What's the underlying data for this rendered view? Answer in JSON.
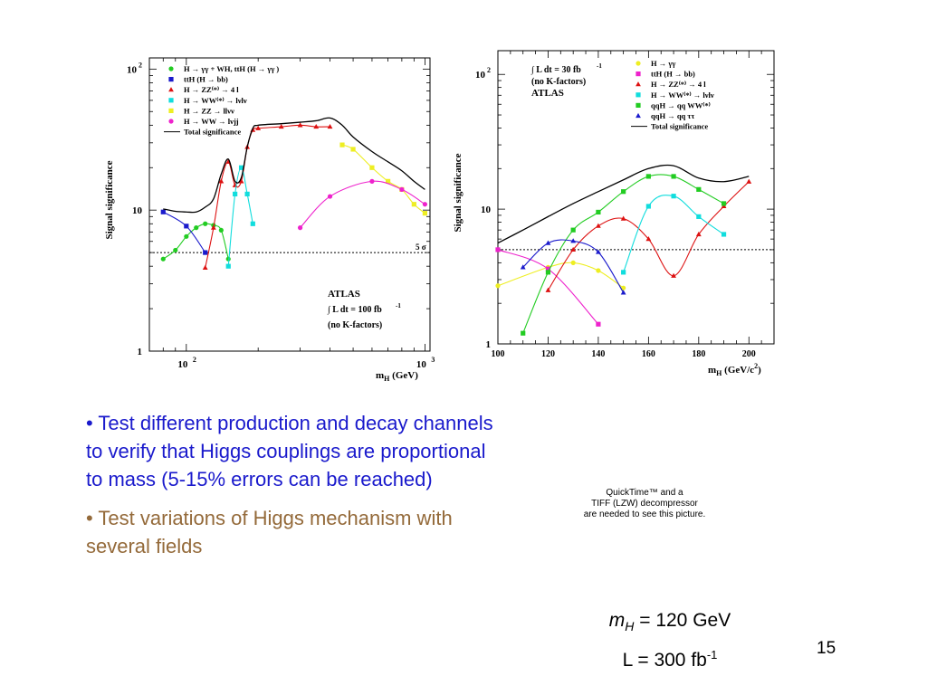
{
  "chart_data": [
    {
      "type": "line",
      "ylabel": "Signal significance",
      "xlabel_main": "m",
      "xlabel_sub": "H",
      "xlabel_unit": " (GeV)",
      "xscale": "log",
      "yscale": "log",
      "xlim": [
        70,
        1050
      ],
      "ylim": [
        1,
        120
      ],
      "xticks": [
        {
          "v": 100,
          "base": "10",
          "exp": "2"
        },
        {
          "v": 1000,
          "base": "10",
          "exp": "3"
        }
      ],
      "yticks": [
        {
          "v": 1,
          "base": "1",
          "exp": ""
        },
        {
          "v": 10,
          "base": "10",
          "exp": ""
        },
        {
          "v": 100,
          "base": "10",
          "exp": "2"
        }
      ],
      "ref_line": {
        "y": 5,
        "label": "5 σ"
      },
      "legend": [
        {
          "text": "H  →  γγ  +   WH, ttH (H  →  γγ )",
          "color": "#22cc22",
          "marker": "circle"
        },
        {
          "text": "ttH (H  →  bb)",
          "color": "#1a1acc",
          "marker": "square"
        },
        {
          "text": "H  →  ZZ⁽*⁾  →  4 l",
          "color": "#dd1111",
          "marker": "triangle"
        },
        {
          "text": "H  →  WW⁽*⁾  →  lνlν",
          "color": "#11dddd",
          "marker": "square"
        },
        {
          "text": "H  →  ZZ   →  llνν",
          "color": "#eeee22",
          "marker": "square"
        },
        {
          "text": "H  →  WW   →  lνjj",
          "color": "#ee22cc",
          "marker": "circle"
        },
        {
          "text": "Total significance",
          "color": "#000000",
          "marker": "line"
        }
      ],
      "annotations": {
        "experiment": "ATLAS",
        "lumi_prefix": "∫ L dt = 100 fb",
        "lumi_exp": "-1",
        "note": "(no K-factors)"
      },
      "series": [
        {
          "name": "H → γγ + WH, ttH (H → γγ)",
          "color": "#22cc22",
          "marker": "circle",
          "x": [
            80,
            90,
            100,
            110,
            120,
            130,
            140,
            150
          ],
          "y": [
            4.5,
            5.2,
            6.5,
            7.5,
            8.0,
            7.8,
            7.2,
            4.5
          ]
        },
        {
          "name": "ttH (H → bb)",
          "color": "#1a1acc",
          "marker": "square",
          "x": [
            80,
            100,
            120
          ],
          "y": [
            9.7,
            7.7,
            5.0
          ]
        },
        {
          "name": "H → ZZ(*) → 4l",
          "color": "#dd1111",
          "marker": "triangle",
          "x": [
            120,
            130,
            140,
            150,
            160,
            170,
            180,
            190,
            200,
            250,
            300,
            350,
            400
          ],
          "y": [
            3.9,
            7.5,
            16,
            22,
            15,
            16,
            28,
            37,
            38,
            39,
            40,
            39,
            39
          ]
        },
        {
          "name": "H → WW(*) → lνlν",
          "color": "#11dddd",
          "marker": "square",
          "x": [
            150,
            160,
            170,
            180,
            190
          ],
          "y": [
            4.0,
            13,
            20,
            13,
            8.0
          ]
        },
        {
          "name": "H → ZZ → llνν",
          "color": "#eeee22",
          "marker": "square",
          "x": [
            450,
            500,
            600,
            700,
            800,
            900,
            1000
          ],
          "y": [
            29,
            27,
            20,
            16,
            14,
            11,
            9.5
          ]
        },
        {
          "name": "H → WW → lνjj",
          "color": "#ee22cc",
          "marker": "circle",
          "x": [
            300,
            400,
            600,
            800,
            1000
          ],
          "y": [
            7.5,
            12.5,
            16,
            14,
            11
          ]
        },
        {
          "name": "Total significance",
          "color": "#000000",
          "marker": "none",
          "x": [
            80,
            90,
            100,
            110,
            120,
            130,
            140,
            150,
            160,
            170,
            180,
            190,
            200,
            250,
            300,
            350,
            400,
            450,
            500,
            600,
            700,
            800,
            900,
            1000
          ],
          "y": [
            10.2,
            9.8,
            9.7,
            9.7,
            10.5,
            12,
            18,
            23,
            16,
            17,
            28,
            38,
            40,
            41,
            42,
            43,
            45,
            40,
            33,
            26,
            22,
            19,
            16,
            14
          ]
        }
      ]
    },
    {
      "type": "line",
      "ylabel": "Signal significance",
      "xlabel_main": "m",
      "xlabel_sub": "H",
      "xlabel_unit": " (GeV/c",
      "xlabel_unit_exp": "2",
      "xlabel_unit_end": ")",
      "xscale": "linear",
      "yscale": "log",
      "xlim": [
        100,
        210
      ],
      "ylim": [
        1,
        150
      ],
      "xticks": [
        {
          "v": 100,
          "label": "100"
        },
        {
          "v": 120,
          "label": "120"
        },
        {
          "v": 140,
          "label": "140"
        },
        {
          "v": 160,
          "label": "160"
        },
        {
          "v": 180,
          "label": "180"
        },
        {
          "v": 200,
          "label": "200"
        }
      ],
      "yticks": [
        {
          "v": 1,
          "base": "1",
          "exp": ""
        },
        {
          "v": 10,
          "base": "10",
          "exp": ""
        },
        {
          "v": 100,
          "base": "10",
          "exp": "2"
        }
      ],
      "ref_line": {
        "y": 5,
        "label": ""
      },
      "legend": [
        {
          "text": "H  →  γγ",
          "color": "#eeee22",
          "marker": "circle"
        },
        {
          "text": "ttH (H  →  bb)",
          "color": "#ee22cc",
          "marker": "square"
        },
        {
          "text": "H  →  ZZ⁽*⁾  →  4 l",
          "color": "#dd1111",
          "marker": "triangle"
        },
        {
          "text": "H  →  WW⁽*⁾  →  lνlν",
          "color": "#11dddd",
          "marker": "square"
        },
        {
          "text": "qqH  →  qq WW⁽*⁾",
          "color": "#22cc22",
          "marker": "square"
        },
        {
          "text": "qqH  →  qq ττ",
          "color": "#1a1acc",
          "marker": "triangle"
        },
        {
          "text": "Total significance",
          "color": "#000000",
          "marker": "line"
        }
      ],
      "annotations": {
        "lumi_prefix": "∫ L dt = 30 fb",
        "lumi_exp": "-1",
        "note": "(no K-factors)",
        "experiment": "ATLAS"
      },
      "series": [
        {
          "name": "H → γγ",
          "color": "#eeee22",
          "marker": "circle",
          "x": [
            100,
            120,
            130,
            140,
            150
          ],
          "y": [
            2.7,
            3.7,
            4.0,
            3.5,
            2.6
          ]
        },
        {
          "name": "ttH (H → bb)",
          "color": "#ee22cc",
          "marker": "square",
          "x": [
            100,
            120,
            140
          ],
          "y": [
            5.0,
            3.6,
            1.4
          ]
        },
        {
          "name": "H → ZZ(*) → 4l",
          "color": "#dd1111",
          "marker": "triangle",
          "x": [
            120,
            130,
            140,
            150,
            160,
            170,
            180,
            190,
            200
          ],
          "y": [
            2.5,
            5.0,
            7.5,
            8.5,
            6.0,
            3.2,
            6.5,
            10.5,
            16
          ]
        },
        {
          "name": "H → WW(*) → lνlν",
          "color": "#11dddd",
          "marker": "square",
          "x": [
            150,
            160,
            170,
            180,
            190
          ],
          "y": [
            3.4,
            10.5,
            12.5,
            8.8,
            6.5
          ]
        },
        {
          "name": "qqH → qq WW(*)",
          "color": "#22cc22",
          "marker": "square",
          "x": [
            110,
            120,
            130,
            140,
            150,
            160,
            170,
            180,
            190
          ],
          "y": [
            1.2,
            3.4,
            7.0,
            9.5,
            13.5,
            17.5,
            17.5,
            14,
            11
          ]
        },
        {
          "name": "qqH → qq ττ",
          "color": "#1a1acc",
          "marker": "triangle",
          "x": [
            110,
            120,
            130,
            140,
            150
          ],
          "y": [
            3.7,
            5.6,
            5.8,
            4.8,
            2.4
          ]
        },
        {
          "name": "Total significance",
          "color": "#000000",
          "marker": "none",
          "x": [
            100,
            110,
            120,
            130,
            140,
            150,
            160,
            170,
            180,
            190,
            200
          ],
          "y": [
            5.6,
            7.0,
            8.8,
            11.0,
            13.5,
            16.5,
            20,
            21,
            17,
            16,
            17.5
          ]
        }
      ]
    }
  ],
  "bullets": [
    "• Test different production and decay channels to verify that Higgs couplings are proportional to mass (5-15% errors can be reached)",
    "• Test variations of Higgs mechanism with several fields"
  ],
  "placeholder": {
    "line1": "QuickTime™ and a",
    "line2": "TIFF (LZW) decompressor",
    "line3": "are needed to see this picture."
  },
  "params": {
    "mass_symbol": "m",
    "mass_sub": "H",
    "mass_value": " = 120 GeV",
    "lumi_text": "L = 300 fb",
    "lumi_exp": "-1"
  },
  "page_number": "15"
}
